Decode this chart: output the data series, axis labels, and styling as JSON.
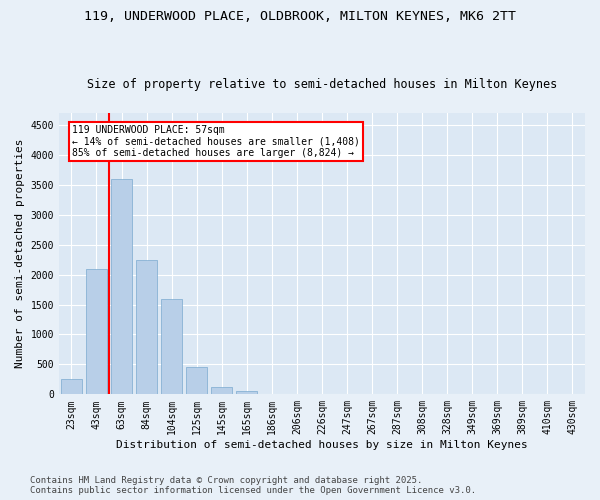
{
  "title_line1": "119, UNDERWOOD PLACE, OLDBROOK, MILTON KEYNES, MK6 2TT",
  "title_line2": "Size of property relative to semi-detached houses in Milton Keynes",
  "xlabel": "Distribution of semi-detached houses by size in Milton Keynes",
  "ylabel": "Number of semi-detached properties",
  "categories": [
    "23sqm",
    "43sqm",
    "63sqm",
    "84sqm",
    "104sqm",
    "125sqm",
    "145sqm",
    "165sqm",
    "186sqm",
    "206sqm",
    "226sqm",
    "247sqm",
    "267sqm",
    "287sqm",
    "308sqm",
    "328sqm",
    "349sqm",
    "369sqm",
    "389sqm",
    "410sqm",
    "430sqm"
  ],
  "bar_values": [
    250,
    2100,
    3600,
    2250,
    1600,
    450,
    120,
    50,
    5,
    0,
    0,
    0,
    0,
    0,
    0,
    0,
    0,
    0,
    0,
    0,
    0
  ],
  "bar_color": "#b8cfe8",
  "bar_edge_color": "#7aaad0",
  "vline_color": "red",
  "vline_x": 1.5,
  "annotation_title": "119 UNDERWOOD PLACE: 57sqm",
  "annotation_line1": "← 14% of semi-detached houses are smaller (1,408)",
  "annotation_line2": "85% of semi-detached houses are larger (8,824) →",
  "annotation_box_color": "white",
  "annotation_box_edge_color": "red",
  "ylim": [
    0,
    4700
  ],
  "yticks": [
    0,
    500,
    1000,
    1500,
    2000,
    2500,
    3000,
    3500,
    4000,
    4500
  ],
  "footnote": "Contains HM Land Registry data © Crown copyright and database right 2025.\nContains public sector information licensed under the Open Government Licence v3.0.",
  "bg_color": "#e8f0f8",
  "plot_bg_color": "#dce8f4",
  "grid_color": "#ffffff",
  "title_fontsize": 9.5,
  "subtitle_fontsize": 8.5,
  "axis_label_fontsize": 8,
  "tick_fontsize": 7,
  "annotation_fontsize": 7,
  "footnote_fontsize": 6.5
}
